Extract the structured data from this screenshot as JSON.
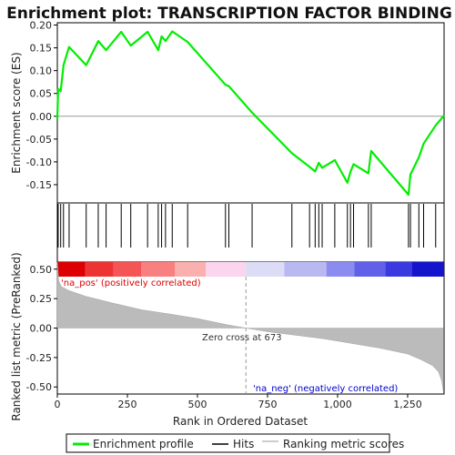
{
  "chart_data": {
    "type": "line",
    "title": "Enrichment plot: TRANSCRIPTION FACTOR BINDING",
    "xlabel": "Rank in Ordered Dataset",
    "ylabel_top": "Enrichment score (ES)",
    "ylabel_bottom": "Ranked list metric (PreRanked)",
    "xlim": [
      0,
      1380
    ],
    "x_ticks": [
      0,
      250,
      500,
      750,
      1000,
      1250
    ],
    "x_tick_labels": [
      "0",
      "250",
      "500",
      "750",
      "1,000",
      "1,250"
    ],
    "es_ylim": [
      -0.19,
      0.205
    ],
    "es_ticks": [
      -0.15,
      -0.1,
      -0.05,
      0.0,
      0.05,
      0.1,
      0.15,
      0.2
    ],
    "es_tick_labels": [
      "-0.15",
      "-0.10",
      "-0.05",
      "0.00",
      "0.05",
      "0.10",
      "0.15",
      "0.20"
    ],
    "metric_ylim": [
      -0.56,
      0.56
    ],
    "metric_ticks": [
      -0.5,
      -0.25,
      0.0,
      0.25,
      0.5
    ],
    "metric_tick_labels": [
      "-0.50",
      "-0.25",
      "0.00",
      "0.25",
      "0.50"
    ],
    "hits": [
      3,
      12,
      22,
      42,
      103,
      146,
      174,
      228,
      262,
      322,
      360,
      372,
      386,
      410,
      465,
      600,
      612,
      695,
      837,
      900,
      920,
      933,
      945,
      990,
      1035,
      1046,
      1057,
      1110,
      1120,
      1253,
      1260,
      1290,
      1307,
      1350
    ],
    "series": [
      {
        "name": "Enrichment profile",
        "color": "#00ee00",
        "x": [
          0,
          3,
          12,
          22,
          42,
          103,
          146,
          174,
          228,
          262,
          322,
          360,
          372,
          386,
          410,
          465,
          600,
          612,
          695,
          837,
          900,
          920,
          933,
          945,
          990,
          1035,
          1046,
          1057,
          1110,
          1120,
          1253,
          1260,
          1290,
          1307,
          1350,
          1380
        ],
        "y": [
          -0.006,
          0.06,
          0.055,
          0.112,
          0.152,
          0.112,
          0.165,
          0.145,
          0.185,
          0.155,
          0.185,
          0.145,
          0.175,
          0.165,
          0.186,
          0.163,
          0.069,
          0.066,
          0.008,
          -0.081,
          -0.111,
          -0.121,
          -0.102,
          -0.113,
          -0.096,
          -0.146,
          -0.122,
          -0.105,
          -0.125,
          -0.076,
          -0.172,
          -0.128,
          -0.09,
          -0.06,
          -0.02,
          0.002
        ]
      }
    ],
    "metric_profile": {
      "x": [
        0,
        5,
        15,
        40,
        100,
        200,
        300,
        400,
        500,
        600,
        673,
        750,
        850,
        950,
        1050,
        1150,
        1250,
        1300,
        1340,
        1360,
        1372,
        1378
      ],
      "y": [
        0.56,
        0.4,
        0.35,
        0.32,
        0.27,
        0.21,
        0.155,
        0.12,
        0.08,
        0.03,
        0.0,
        -0.03,
        -0.06,
        -0.09,
        -0.13,
        -0.17,
        -0.22,
        -0.27,
        -0.32,
        -0.37,
        -0.45,
        -0.55
      ]
    },
    "color_bar": [
      {
        "start": 0,
        "end": 100,
        "color": "#dd0000"
      },
      {
        "start": 100,
        "end": 200,
        "color": "#ee3333"
      },
      {
        "start": 200,
        "end": 300,
        "color": "#f55555"
      },
      {
        "start": 300,
        "end": 420,
        "color": "#f88080"
      },
      {
        "start": 420,
        "end": 530,
        "color": "#fbb0b0"
      },
      {
        "start": 530,
        "end": 673,
        "color": "#fbd4ee"
      },
      {
        "start": 673,
        "end": 810,
        "color": "#dcdcf6"
      },
      {
        "start": 810,
        "end": 960,
        "color": "#b9b9f2"
      },
      {
        "start": 960,
        "end": 1060,
        "color": "#8c8cf0"
      },
      {
        "start": 1060,
        "end": 1170,
        "color": "#6060e8"
      },
      {
        "start": 1170,
        "end": 1265,
        "color": "#3a3ae0"
      },
      {
        "start": 1265,
        "end": 1380,
        "color": "#1414cc"
      }
    ],
    "zero_cross": 673,
    "annotations": {
      "pos_label": "'na_pos' (positively correlated)",
      "neg_label": "'na_neg' (negatively correlated)",
      "zero_cross_label": "Zero cross at 673"
    },
    "colors": {
      "es_line": "#00ee00",
      "hits": "#000000",
      "metric_fill": "#bbbbbb",
      "pos_label": "#dd0000",
      "neg_label": "#0000cc"
    },
    "legend": {
      "items": [
        {
          "label": "Enrichment profile",
          "kind": "line",
          "color": "#00ee00"
        },
        {
          "label": "Hits",
          "kind": "line",
          "color": "#000000"
        },
        {
          "label": "Ranking metric scores",
          "kind": "line",
          "color": "#bbbbbb"
        }
      ]
    }
  }
}
